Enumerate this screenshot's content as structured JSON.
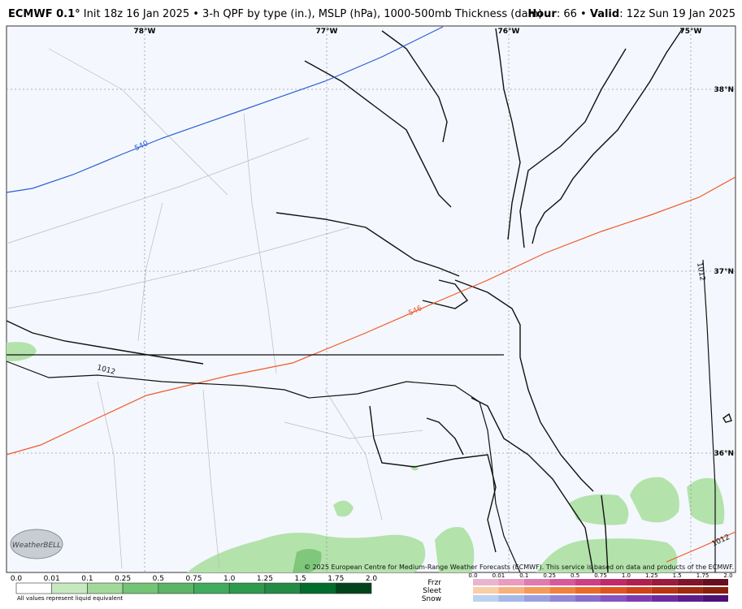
{
  "header": {
    "title": "ECMWF 0.1°",
    "subtitle": "Init 18z 16 Jan 2025 • 3-h QPF by type (in.), MSLP (hPa), 1000-500mb Thickness (dam)",
    "hour_label": "Hour",
    "hour": ": 66 •",
    "valid_label": "Valid",
    "valid": ": 12z Sun 19 Jan 2025"
  },
  "map": {
    "longitudes": [
      "78°W",
      "77°W",
      "76°W",
      "75°W"
    ],
    "latitudes": [
      "38°N",
      "37°N",
      "36°N"
    ],
    "thickness_labels": [
      "540",
      "546"
    ],
    "mslp_labels": [
      "1012",
      "1012",
      "1012"
    ],
    "credit": "© 2025 European Centre for Medium-Range Weather Forecasts (ECMWF). This service is based on data and products of the ECMWF."
  },
  "logo": "WeatherBELL",
  "legend": {
    "rain_ticks": [
      "0.0",
      "0.01",
      "0.1",
      "0.25",
      "0.5",
      "0.75",
      "1.0",
      "1.25",
      "1.5",
      "1.75",
      "2.0"
    ],
    "note": "All values represent liquid equivalent",
    "ptype_labels": [
      "Frzr",
      "Sleet",
      "Snow"
    ],
    "ptype_ticks": [
      "0.0",
      "0.01",
      "0.1",
      "0.25",
      "0.5",
      "0.75",
      "1.0",
      "1.25",
      "1.5",
      "1.75",
      "2.0"
    ]
  }
}
